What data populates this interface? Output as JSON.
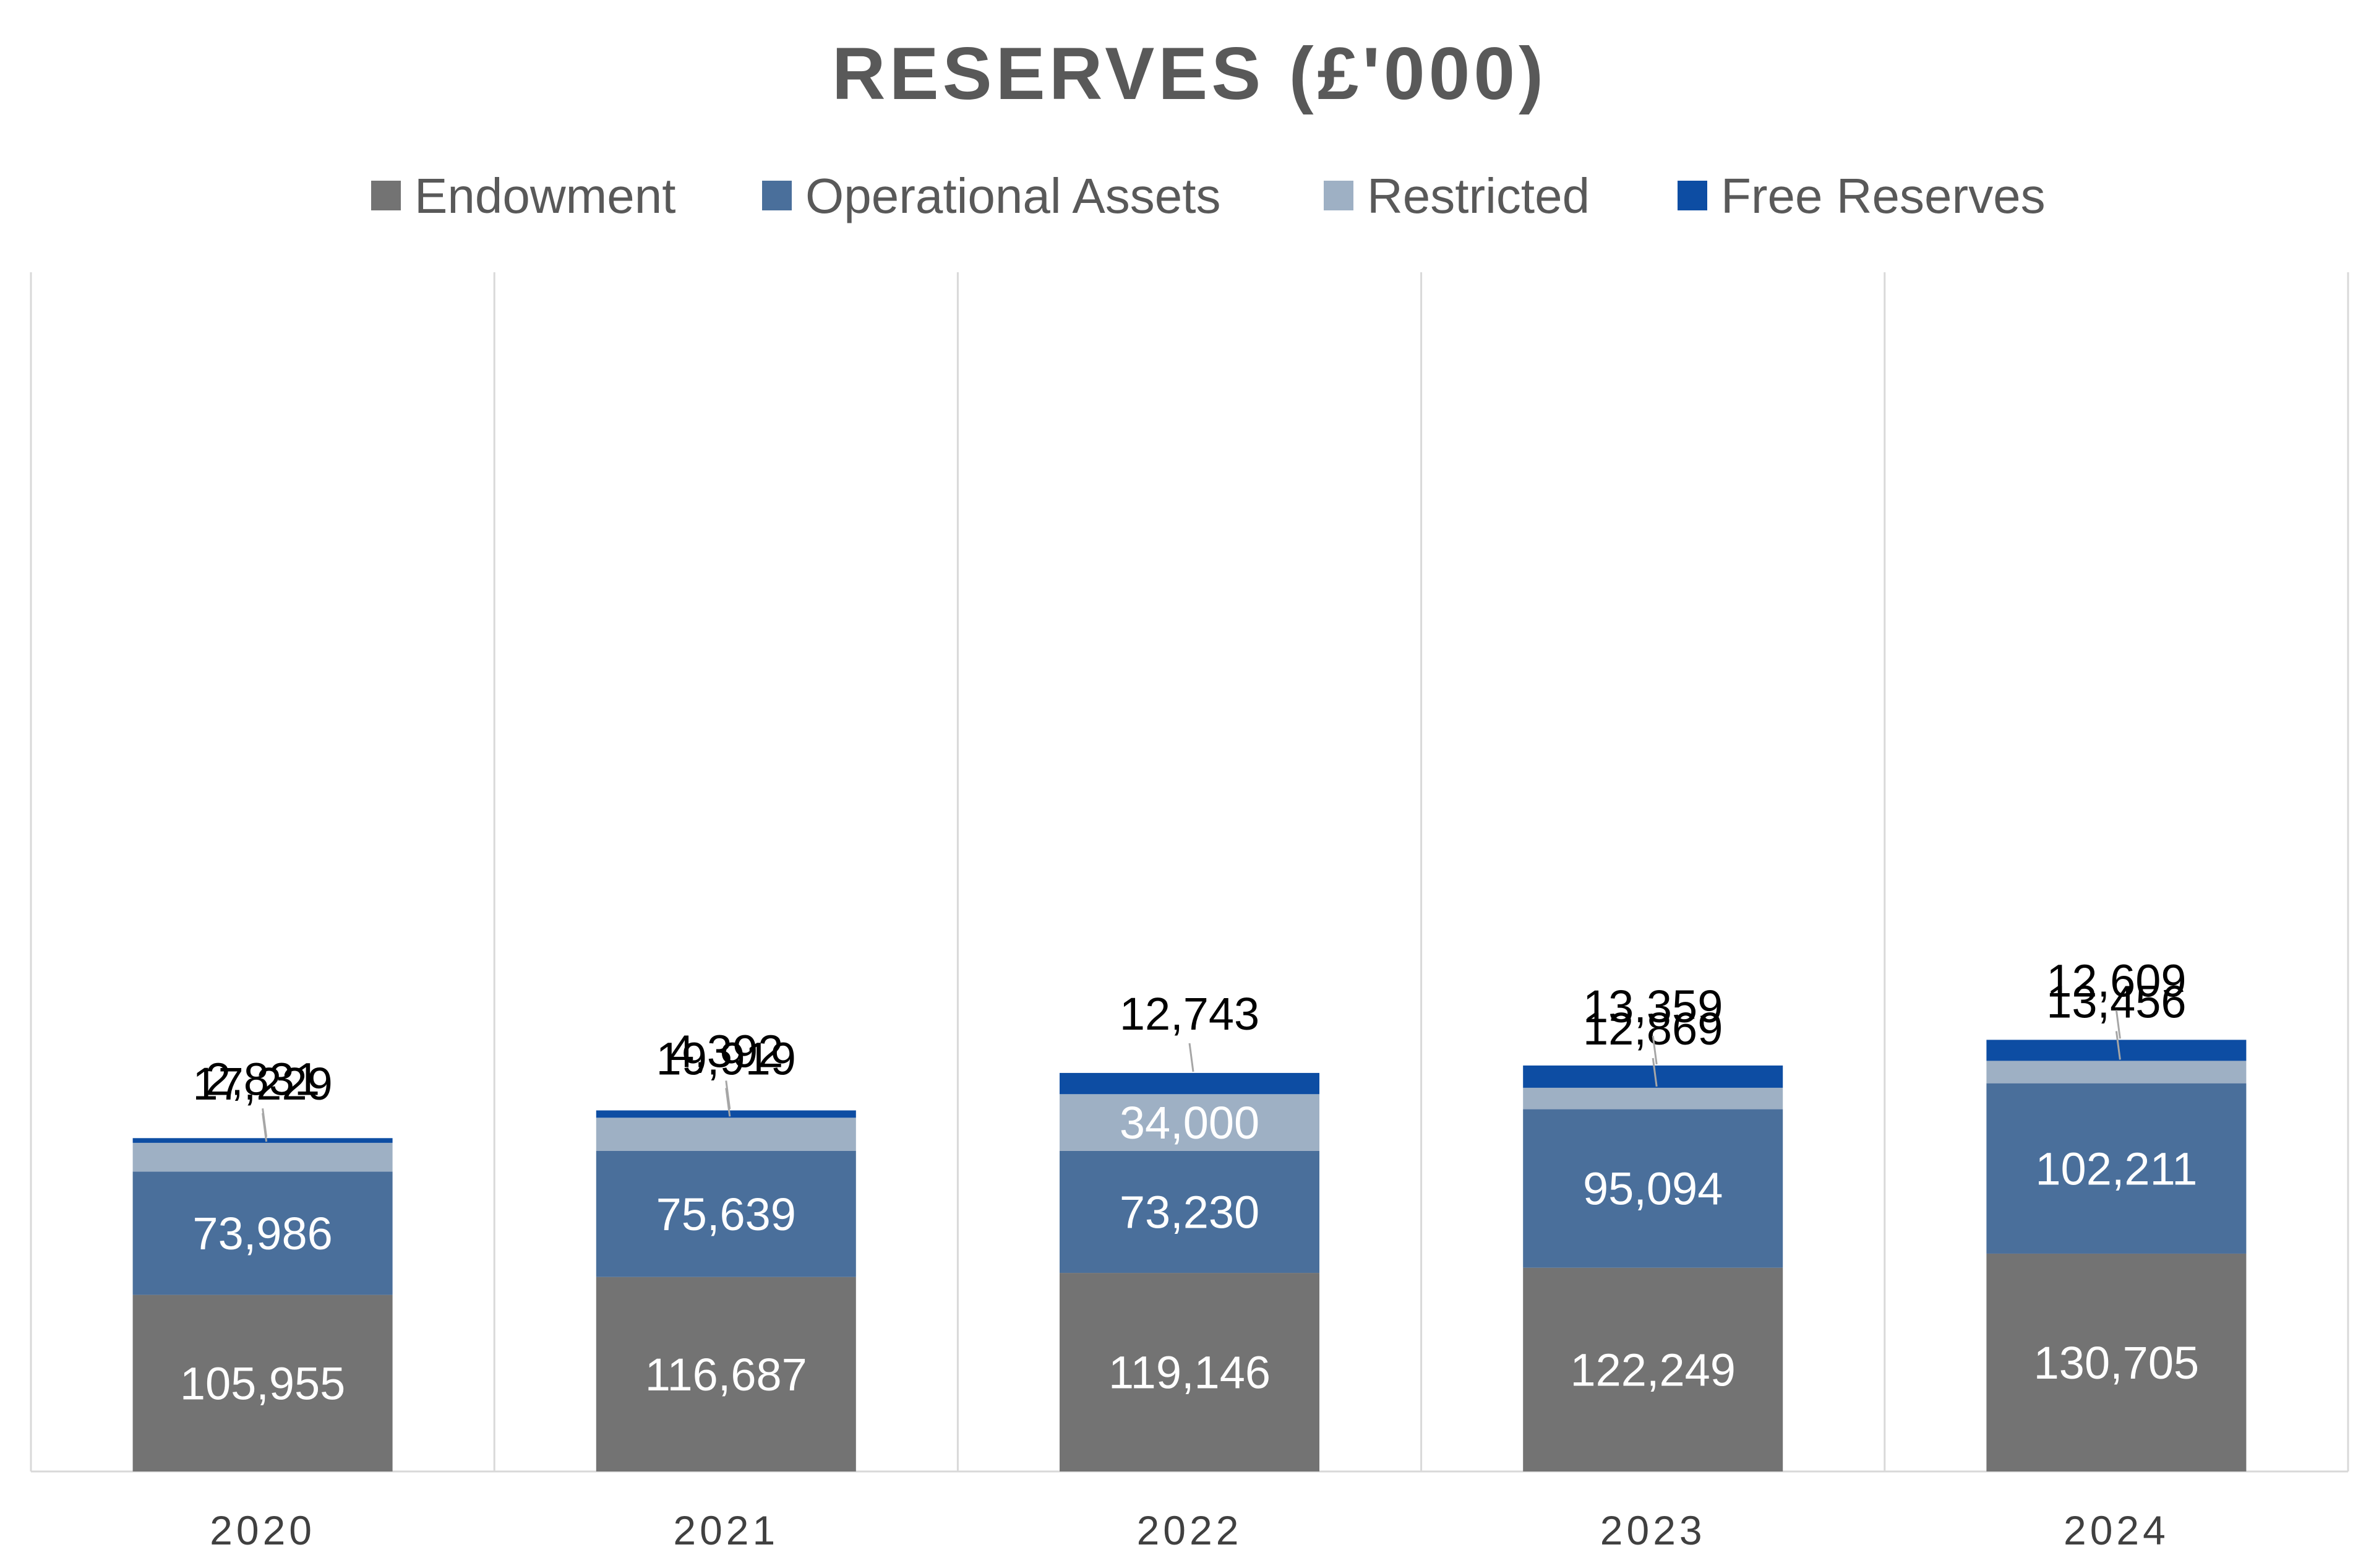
{
  "chart_data": {
    "type": "bar",
    "stacked": true,
    "title": "RESERVES (£'000)",
    "xlabel": "",
    "ylabel": "",
    "categories": [
      "2020",
      "2021",
      "2022",
      "2023",
      "2024"
    ],
    "series": [
      {
        "name": "Endowment",
        "color": "#737373",
        "values": [
          105955,
          116687,
          119146,
          122249,
          130705
        ],
        "labels": [
          "105,955",
          "116,687",
          "119,146",
          "122,249",
          "130,705"
        ]
      },
      {
        "name": "Operational Assets",
        "color": "#4a6f9b",
        "values": [
          73986,
          75639,
          73230,
          95094,
          102211
        ],
        "labels": [
          "73,986",
          "75,639",
          "73,230",
          "95,094",
          "102,211"
        ]
      },
      {
        "name": "Restricted",
        "color": "#9eb0c4",
        "values": [
          17229,
          19919,
          34000,
          12869,
          13456
        ],
        "labels": [
          "17,229",
          "19,919",
          "34,000",
          "12,869",
          "13,456"
        ]
      },
      {
        "name": "Free Reserves",
        "color": "#0d4da3",
        "values": [
          2831,
          4392,
          12743,
          13359,
          12609
        ],
        "labels": [
          "2,831",
          "4,392",
          "12,743",
          "13,359",
          "12,609"
        ]
      }
    ],
    "ylim": [
      0,
      300000
    ],
    "legend_position": "top",
    "grid": false,
    "vertical_separators": true,
    "colors": {
      "title": "#595959",
      "legend_text": "#595959",
      "tick_text": "#404040",
      "label_inside": "#ffffff",
      "label_outside": "#000000",
      "separator": "#d9d9d9"
    }
  }
}
